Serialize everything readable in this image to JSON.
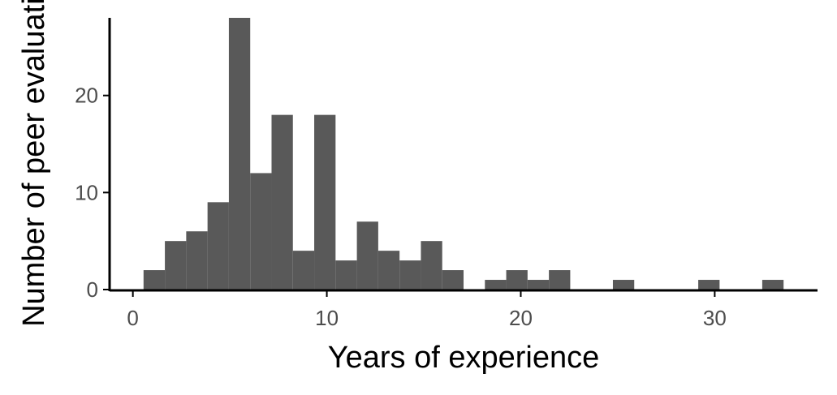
{
  "chart_data": {
    "type": "bar",
    "xlabel": "Years of experience",
    "ylabel": "Number of peer evaluations",
    "x_ticks": [
      0,
      10,
      20,
      30
    ],
    "y_ticks": [
      0,
      10,
      20
    ],
    "xlim": [
      -1.2,
      35.3
    ],
    "ylim": [
      0,
      28
    ],
    "bin_width": 1.1,
    "bins": [
      {
        "x": 1.1,
        "count": 2
      },
      {
        "x": 2.2,
        "count": 5
      },
      {
        "x": 3.3,
        "count": 6
      },
      {
        "x": 4.4,
        "count": 9
      },
      {
        "x": 5.5,
        "count": 28
      },
      {
        "x": 6.6,
        "count": 12
      },
      {
        "x": 7.7,
        "count": 18
      },
      {
        "x": 8.8,
        "count": 4
      },
      {
        "x": 9.9,
        "count": 18
      },
      {
        "x": 11.0,
        "count": 3
      },
      {
        "x": 12.1,
        "count": 7
      },
      {
        "x": 13.2,
        "count": 4
      },
      {
        "x": 14.3,
        "count": 3
      },
      {
        "x": 15.4,
        "count": 5
      },
      {
        "x": 16.5,
        "count": 2
      },
      {
        "x": 18.7,
        "count": 1
      },
      {
        "x": 19.8,
        "count": 2
      },
      {
        "x": 20.9,
        "count": 1
      },
      {
        "x": 22.0,
        "count": 2
      },
      {
        "x": 25.3,
        "count": 1
      },
      {
        "x": 29.7,
        "count": 1
      },
      {
        "x": 33.0,
        "count": 1
      }
    ],
    "grid": false,
    "legend": "none",
    "bar_color": "#595959"
  }
}
